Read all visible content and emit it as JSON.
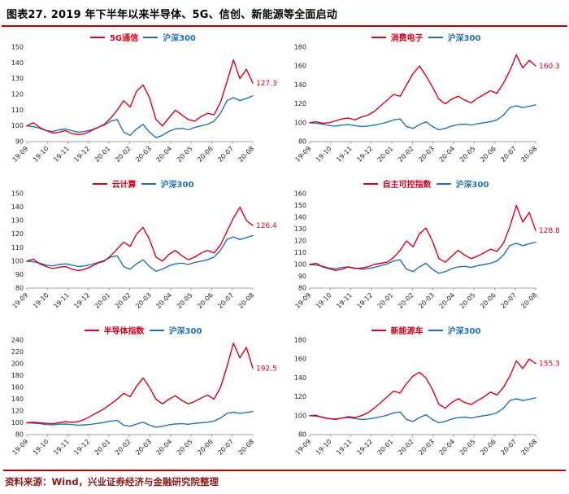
{
  "header": {
    "title": "图表27. 2019 年下半年以来半导体、5G、信创、新能源等全面启动"
  },
  "footer": {
    "source": "资料来源：Wind，兴业证券经济与金融研究院整理"
  },
  "colors": {
    "accent_rule": "#c00000",
    "series_red": "#d9001b",
    "series_blue": "#2273b5"
  },
  "x_categories": [
    "19-09",
    "19-10",
    "19-11",
    "19-12",
    "20-01",
    "20-02",
    "20-03",
    "20-04",
    "20-05",
    "20-06",
    "20-07",
    "20-08"
  ],
  "chart_data": [
    {
      "type": "line",
      "title": "",
      "legend": [
        "5G通信",
        "沪深300"
      ],
      "ylim": [
        90,
        150
      ],
      "ytick_step": 10,
      "end_label": "127.3",
      "legend_position": "top",
      "grid": false,
      "series": [
        {
          "name": "5G通信",
          "color": "#d9001b",
          "values": [
            100,
            102,
            99,
            97,
            95.5,
            96,
            97,
            95,
            94.5,
            95,
            97,
            99,
            101,
            105,
            110,
            116,
            112,
            122,
            126,
            118,
            104,
            100,
            105,
            110,
            107,
            104,
            103,
            106,
            108,
            107,
            115,
            128,
            142,
            130,
            136,
            127.3
          ]
        },
        {
          "name": "沪深300",
          "color": "#2273b5",
          "values": [
            100,
            99.5,
            98.5,
            97,
            96.5,
            97.5,
            98,
            97,
            96,
            96.5,
            97.5,
            99,
            100.5,
            103,
            104,
            96,
            94,
            98,
            101,
            96,
            92.5,
            94,
            96.5,
            98,
            98.5,
            97.5,
            99,
            100,
            101,
            103,
            108,
            116,
            118,
            116,
            117.5,
            119
          ]
        }
      ]
    },
    {
      "type": "line",
      "title": "",
      "legend": [
        "消费电子",
        "沪深300"
      ],
      "ylim": [
        80,
        180
      ],
      "ytick_step": 20,
      "end_label": "160.3",
      "legend_position": "top",
      "grid": false,
      "series": [
        {
          "name": "消费电子",
          "color": "#d9001b",
          "values": [
            100,
            101,
            99.5,
            100,
            102,
            104,
            105,
            103,
            106,
            108,
            112,
            118,
            124,
            130,
            128,
            140,
            152,
            160,
            150,
            138,
            125,
            120,
            125,
            128,
            124,
            121,
            126,
            130,
            134,
            131,
            142,
            155,
            172,
            158,
            166,
            160.3
          ]
        },
        {
          "name": "沪深300",
          "color": "#2273b5",
          "values": [
            100,
            99.5,
            98.5,
            97,
            96.5,
            97.5,
            98,
            97,
            96,
            96.5,
            97.5,
            99,
            100.5,
            103,
            104,
            96,
            94,
            98,
            101,
            96,
            92.5,
            94,
            96.5,
            98,
            98.5,
            97.5,
            99,
            100,
            101,
            103,
            108,
            116,
            118,
            116,
            117.5,
            119
          ]
        }
      ]
    },
    {
      "type": "line",
      "title": "",
      "legend": [
        "云计算",
        "沪深300"
      ],
      "ylim": [
        80,
        150
      ],
      "ytick_step": 10,
      "end_label": "126.4",
      "legend_position": "top",
      "grid": false,
      "series": [
        {
          "name": "云计算",
          "color": "#d9001b",
          "values": [
            100,
            101.5,
            98,
            96,
            94.5,
            95.5,
            96,
            94,
            93,
            94,
            96,
            98.5,
            100,
            104,
            109,
            114,
            111,
            120,
            125,
            116,
            103,
            100,
            105,
            108,
            104,
            101,
            103,
            106,
            108,
            106,
            112,
            122,
            132,
            140,
            130,
            126.4
          ]
        },
        {
          "name": "沪深300",
          "color": "#2273b5",
          "values": [
            100,
            99.5,
            98.5,
            97,
            96.5,
            97.5,
            98,
            97,
            96,
            96.5,
            97.5,
            99,
            100.5,
            103,
            104,
            96,
            94,
            98,
            101,
            96,
            92.5,
            94,
            96.5,
            98,
            98.5,
            97.5,
            99,
            100,
            101,
            103,
            108,
            116,
            118,
            116,
            117.5,
            119
          ]
        }
      ]
    },
    {
      "type": "line",
      "title": "",
      "legend": [
        "自主可控指数",
        "沪深300"
      ],
      "ylim": [
        80,
        160
      ],
      "ytick_step": 10,
      "end_label": "128.8",
      "legend_position": "top",
      "grid": false,
      "series": [
        {
          "name": "自主可控指数",
          "color": "#d9001b",
          "values": [
            100,
            101,
            98,
            96.5,
            95,
            96,
            98,
            96.5,
            97,
            98,
            100,
            101,
            102,
            106,
            112,
            120,
            115,
            126,
            131,
            120,
            105,
            102,
            107,
            112,
            108,
            105,
            107,
            110,
            113,
            111,
            118,
            132,
            150,
            136,
            144,
            128.8
          ]
        },
        {
          "name": "沪深300",
          "color": "#2273b5",
          "values": [
            100,
            99.5,
            98.5,
            97,
            96.5,
            97.5,
            98,
            97,
            96,
            96.5,
            97.5,
            99,
            100.5,
            103,
            104,
            96,
            94,
            98,
            101,
            96,
            92.5,
            94,
            96.5,
            98,
            98.5,
            97.5,
            99,
            100,
            101,
            103,
            108,
            116,
            118,
            116,
            117.5,
            119
          ]
        }
      ]
    },
    {
      "type": "line",
      "title": "",
      "legend": [
        "半导体指数",
        "沪深300"
      ],
      "ylim": [
        80,
        240
      ],
      "ytick_step": 20,
      "end_label": "192.5",
      "legend_position": "top",
      "grid": false,
      "series": [
        {
          "name": "半导体指数",
          "color": "#d9001b",
          "values": [
            100,
            101,
            100,
            99,
            98.5,
            100,
            102,
            100.5,
            102,
            106,
            112,
            118,
            124,
            132,
            140,
            150,
            144,
            162,
            176,
            160,
            140,
            132,
            140,
            146,
            138,
            132,
            136,
            142,
            147,
            140,
            160,
            195,
            235,
            210,
            228,
            192.5
          ]
        },
        {
          "name": "沪深300",
          "color": "#2273b5",
          "values": [
            100,
            99.5,
            98.5,
            97,
            96.5,
            97.5,
            98,
            97,
            96,
            96.5,
            97.5,
            99,
            100.5,
            103,
            104,
            96,
            94,
            98,
            101,
            96,
            92.5,
            94,
            96.5,
            98,
            98.5,
            97.5,
            99,
            100,
            101,
            103,
            108,
            116,
            118,
            116,
            117.5,
            119
          ]
        }
      ]
    },
    {
      "type": "line",
      "title": "",
      "legend": [
        "新能源车",
        "沪深300"
      ],
      "ylim": [
        80,
        180
      ],
      "ytick_step": 20,
      "end_label": "155.3",
      "legend_position": "top",
      "grid": false,
      "series": [
        {
          "name": "新能源车",
          "color": "#d9001b",
          "values": [
            100,
            100.5,
            98,
            97,
            96,
            97.5,
            99,
            98,
            100,
            103,
            108,
            114,
            120,
            126,
            124,
            134,
            142,
            146,
            140,
            128,
            112,
            108,
            114,
            118,
            114,
            112,
            116,
            120,
            125,
            122,
            130,
            142,
            158,
            150,
            160,
            155.3
          ]
        },
        {
          "name": "沪深300",
          "color": "#2273b5",
          "values": [
            100,
            99.5,
            98.5,
            97,
            96.5,
            97.5,
            98,
            97,
            96,
            96.5,
            97.5,
            99,
            100.5,
            103,
            104,
            96,
            94,
            98,
            101,
            96,
            92.5,
            94,
            96.5,
            98,
            98.5,
            97.5,
            99,
            100,
            101,
            103,
            108,
            116,
            118,
            116,
            117.5,
            119
          ]
        }
      ]
    }
  ]
}
